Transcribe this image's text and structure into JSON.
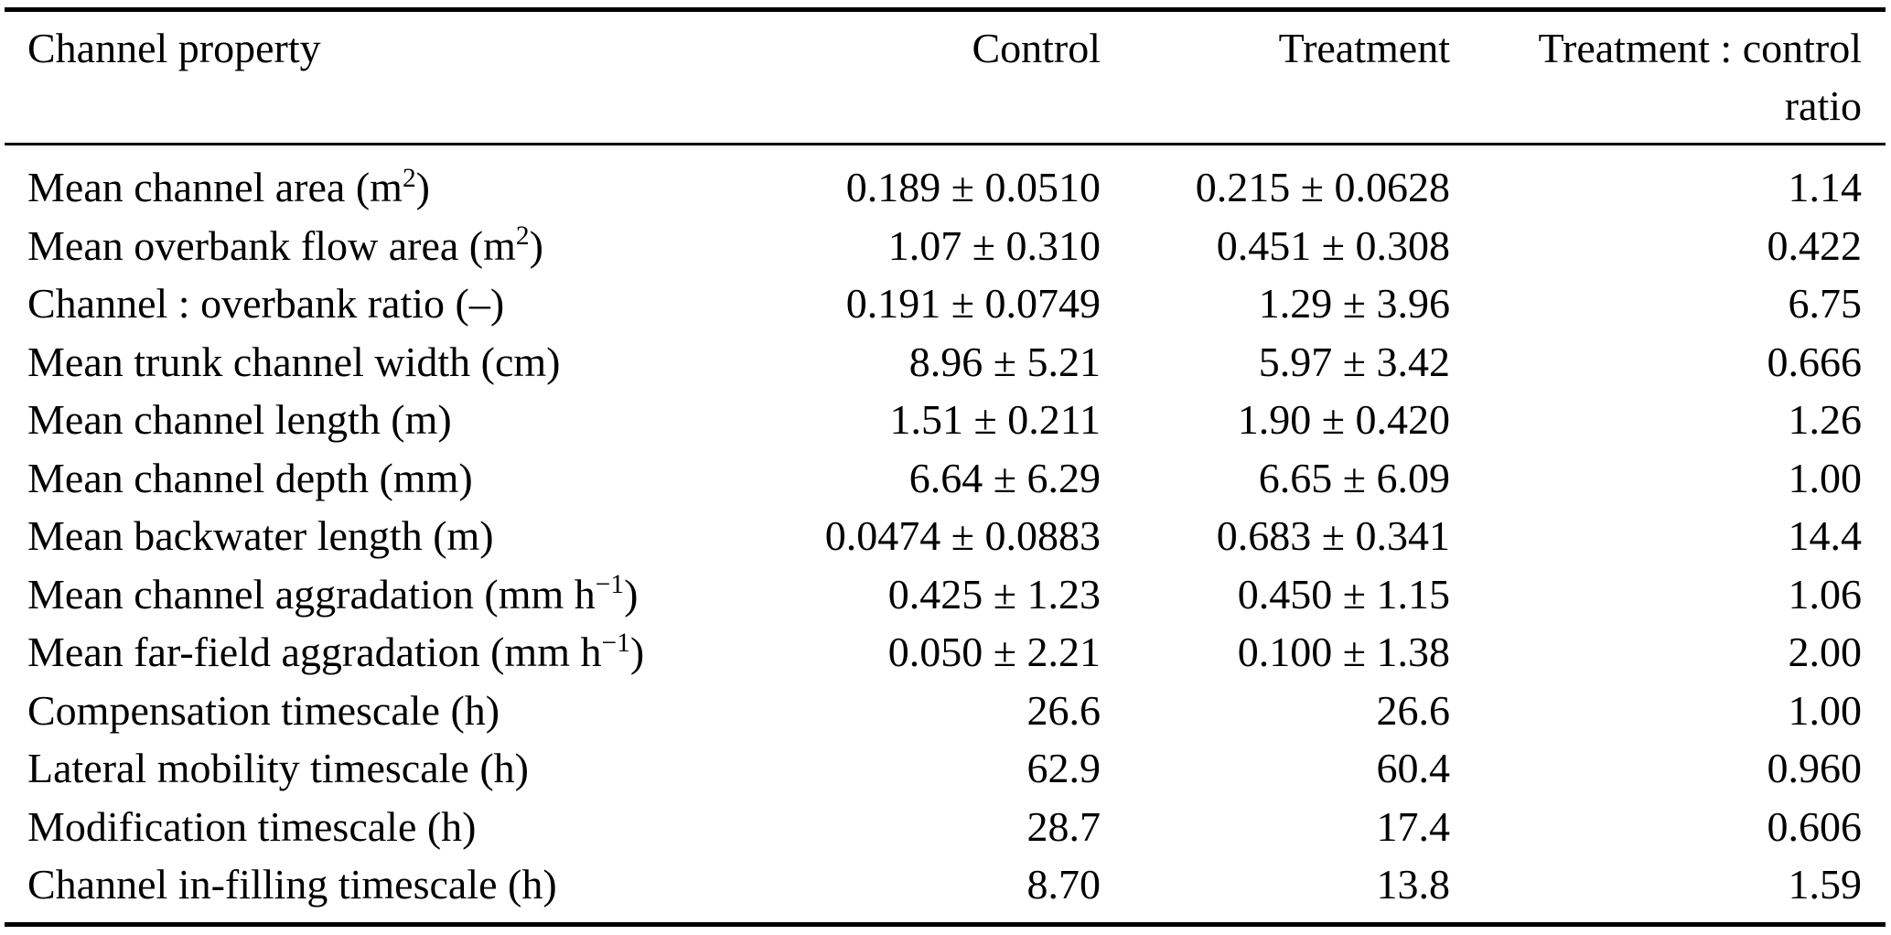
{
  "table": {
    "columns": {
      "property": "Channel property",
      "control": "Control",
      "treatment": "Treatment",
      "ratio_line1": "Treatment : control",
      "ratio_line2": "ratio"
    },
    "rows": [
      {
        "property": "Mean channel area (m^{2})",
        "control": "0.189 ± 0.0510",
        "treatment": "0.215 ± 0.0628",
        "ratio": "1.14"
      },
      {
        "property": "Mean overbank flow area (m^{2})",
        "control": "1.07 ± 0.310",
        "treatment": "0.451 ± 0.308",
        "ratio": "0.422"
      },
      {
        "property": "Channel : overbank ratio (–)",
        "control": "0.191 ± 0.0749",
        "treatment": "1.29 ± 3.96",
        "ratio": "6.75"
      },
      {
        "property": "Mean trunk channel width (cm)",
        "control": "8.96 ± 5.21",
        "treatment": "5.97 ± 3.42",
        "ratio": "0.666"
      },
      {
        "property": "Mean channel length (m)",
        "control": "1.51 ± 0.211",
        "treatment": "1.90 ± 0.420",
        "ratio": "1.26"
      },
      {
        "property": "Mean channel depth (mm)",
        "control": "6.64 ± 6.29",
        "treatment": "6.65 ± 6.09",
        "ratio": "1.00"
      },
      {
        "property": "Mean backwater length (m)",
        "control": "0.0474 ± 0.0883",
        "treatment": "0.683 ± 0.341",
        "ratio": "14.4"
      },
      {
        "property": "Mean channel aggradation (mm h^{−1})",
        "control": "0.425 ± 1.23",
        "treatment": "0.450 ± 1.15",
        "ratio": "1.06"
      },
      {
        "property": "Mean far-field aggradation (mm h^{−1})",
        "control": "0.050 ± 2.21",
        "treatment": "0.100 ± 1.38",
        "ratio": "2.00"
      },
      {
        "property": "Compensation timescale (h)",
        "control": "26.6",
        "treatment": "26.6",
        "ratio": "1.00"
      },
      {
        "property": "Lateral mobility timescale (h)",
        "control": "62.9",
        "treatment": "60.4",
        "ratio": "0.960"
      },
      {
        "property": "Modification timescale (h)",
        "control": "28.7",
        "treatment": "17.4",
        "ratio": "0.606"
      },
      {
        "property": "Channel in-filling timescale (h)",
        "control": "8.70",
        "treatment": "13.8",
        "ratio": "1.59"
      }
    ]
  }
}
